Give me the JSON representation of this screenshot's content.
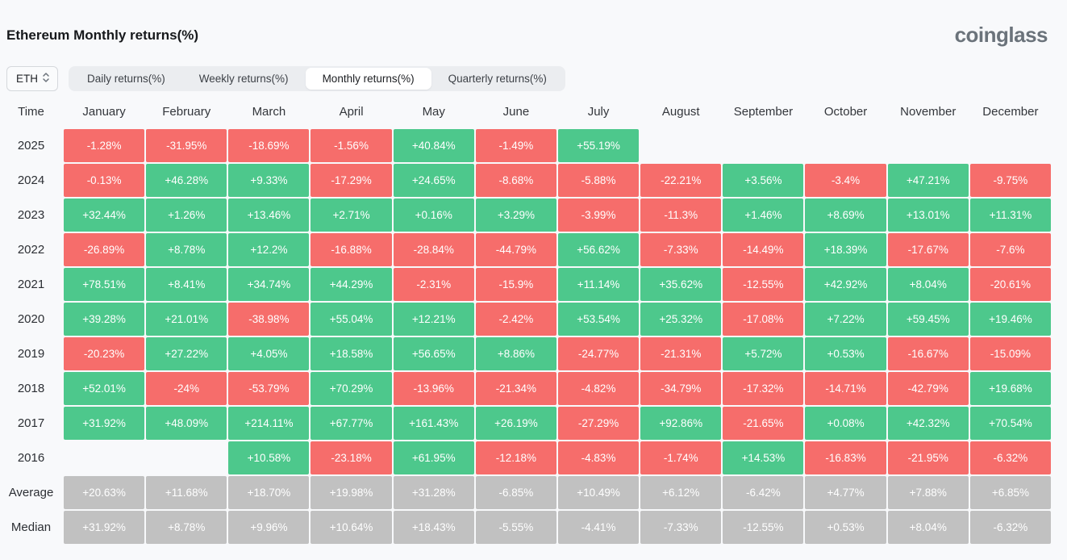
{
  "page": {
    "title": "Ethereum Monthly returns(%)",
    "brand": "coinglass"
  },
  "controls": {
    "symbol_select": {
      "value": "ETH"
    },
    "tabs": [
      {
        "label": "Daily returns(%)",
        "active": false
      },
      {
        "label": "Weekly returns(%)",
        "active": false
      },
      {
        "label": "Monthly returns(%)",
        "active": true
      },
      {
        "label": "Quarterly returns(%)",
        "active": false
      }
    ]
  },
  "colors": {
    "positive": "#4dc88c",
    "negative": "#f66d6b",
    "summary": "#c1c1c1"
  },
  "chart_data": {
    "type": "heatmap",
    "title": "Ethereum Monthly returns(%)",
    "columns": [
      "Time",
      "January",
      "February",
      "March",
      "April",
      "May",
      "June",
      "July",
      "August",
      "September",
      "October",
      "November",
      "December"
    ],
    "rows": [
      {
        "label": "2025",
        "summary": false,
        "values": [
          "-1.28%",
          "-31.95%",
          "-18.69%",
          "-1.56%",
          "+40.84%",
          "-1.49%",
          "+55.19%",
          "",
          "",
          "",
          "",
          ""
        ]
      },
      {
        "label": "2024",
        "summary": false,
        "values": [
          "-0.13%",
          "+46.28%",
          "+9.33%",
          "-17.29%",
          "+24.65%",
          "-8.68%",
          "-5.88%",
          "-22.21%",
          "+3.56%",
          "-3.4%",
          "+47.21%",
          "-9.75%"
        ]
      },
      {
        "label": "2023",
        "summary": false,
        "values": [
          "+32.44%",
          "+1.26%",
          "+13.46%",
          "+2.71%",
          "+0.16%",
          "+3.29%",
          "-3.99%",
          "-11.3%",
          "+1.46%",
          "+8.69%",
          "+13.01%",
          "+11.31%"
        ]
      },
      {
        "label": "2022",
        "summary": false,
        "values": [
          "-26.89%",
          "+8.78%",
          "+12.2%",
          "-16.88%",
          "-28.84%",
          "-44.79%",
          "+56.62%",
          "-7.33%",
          "-14.49%",
          "+18.39%",
          "-17.67%",
          "-7.6%"
        ]
      },
      {
        "label": "2021",
        "summary": false,
        "values": [
          "+78.51%",
          "+8.41%",
          "+34.74%",
          "+44.29%",
          "-2.31%",
          "-15.9%",
          "+11.14%",
          "+35.62%",
          "-12.55%",
          "+42.92%",
          "+8.04%",
          "-20.61%"
        ]
      },
      {
        "label": "2020",
        "summary": false,
        "values": [
          "+39.28%",
          "+21.01%",
          "-38.98%",
          "+55.04%",
          "+12.21%",
          "-2.42%",
          "+53.54%",
          "+25.32%",
          "-17.08%",
          "+7.22%",
          "+59.45%",
          "+19.46%"
        ]
      },
      {
        "label": "2019",
        "summary": false,
        "values": [
          "-20.23%",
          "+27.22%",
          "+4.05%",
          "+18.58%",
          "+56.65%",
          "+8.86%",
          "-24.77%",
          "-21.31%",
          "+5.72%",
          "+0.53%",
          "-16.67%",
          "-15.09%"
        ]
      },
      {
        "label": "2018",
        "summary": false,
        "values": [
          "+52.01%",
          "-24%",
          "-53.79%",
          "+70.29%",
          "-13.96%",
          "-21.34%",
          "-4.82%",
          "-34.79%",
          "-17.32%",
          "-14.71%",
          "-42.79%",
          "+19.68%"
        ]
      },
      {
        "label": "2017",
        "summary": false,
        "values": [
          "+31.92%",
          "+48.09%",
          "+214.11%",
          "+67.77%",
          "+161.43%",
          "+26.19%",
          "-27.29%",
          "+92.86%",
          "-21.65%",
          "+0.08%",
          "+42.32%",
          "+70.54%"
        ]
      },
      {
        "label": "2016",
        "summary": false,
        "values": [
          "",
          "",
          "+10.58%",
          "-23.18%",
          "+61.95%",
          "-12.18%",
          "-4.83%",
          "-1.74%",
          "+14.53%",
          "-16.83%",
          "-21.95%",
          "-6.32%"
        ]
      },
      {
        "label": "Average",
        "summary": true,
        "values": [
          "+20.63%",
          "+11.68%",
          "+18.70%",
          "+19.98%",
          "+31.28%",
          "-6.85%",
          "+10.49%",
          "+6.12%",
          "-6.42%",
          "+4.77%",
          "+7.88%",
          "+6.85%"
        ]
      },
      {
        "label": "Median",
        "summary": true,
        "values": [
          "+31.92%",
          "+8.78%",
          "+9.96%",
          "+10.64%",
          "+18.43%",
          "-5.55%",
          "-4.41%",
          "-7.33%",
          "-12.55%",
          "+0.53%",
          "+8.04%",
          "-6.32%"
        ]
      }
    ]
  }
}
